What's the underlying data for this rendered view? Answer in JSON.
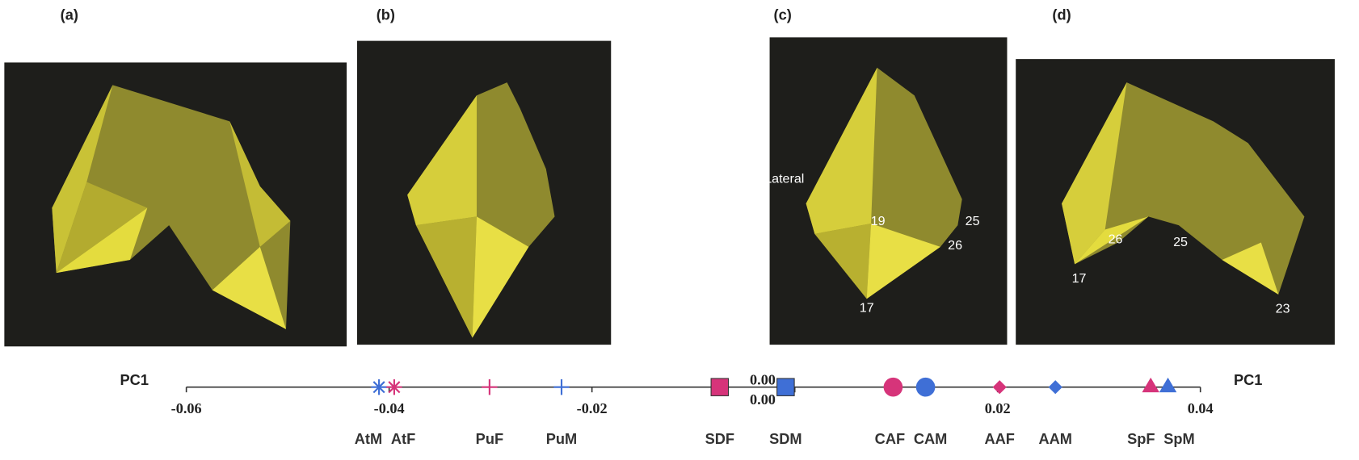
{
  "panels": [
    {
      "label": "(a)",
      "annotations": []
    },
    {
      "label": "(b)",
      "annotations": []
    },
    {
      "label": "(c)",
      "annotations": [
        "Lateral",
        "19",
        "25",
        "26",
        "17"
      ]
    },
    {
      "label": "(d)",
      "annotations": [
        "26",
        "25",
        "17",
        "23"
      ]
    }
  ],
  "chart_data": {
    "type": "strip",
    "axis_labels": [
      "PC1",
      "PC1"
    ],
    "xlim": [
      -0.06,
      0.04
    ],
    "xticks": [
      -0.06,
      -0.04,
      -0.02,
      {
        "value": 0,
        "label": "0.00"
      },
      {
        "value": 0,
        "label": "0.00"
      },
      0.02,
      0.04
    ],
    "series": [
      {
        "name": "AtM",
        "color": "#3f6fd6",
        "marker": "asterisk",
        "values": [
          -0.041
        ]
      },
      {
        "name": "AtF",
        "color": "#d6347a",
        "marker": "asterisk",
        "values": [
          -0.0395
        ]
      },
      {
        "name": "PuF",
        "color": "#d6347a",
        "marker": "plus",
        "values": [
          -0.0301
        ]
      },
      {
        "name": "PuM",
        "color": "#3f6fd6",
        "marker": "plus",
        "values": [
          -0.023
        ]
      },
      {
        "name": "SDF",
        "color": "#d6347a",
        "marker": "square",
        "values": [
          -0.0074
        ]
      },
      {
        "name": "SDM",
        "color": "#3f6fd6",
        "marker": "square",
        "values": [
          -0.0009
        ]
      },
      {
        "name": "CAF",
        "color": "#d6347a",
        "marker": "circle",
        "values": [
          0.0097
        ]
      },
      {
        "name": "CAM",
        "color": "#3f6fd6",
        "marker": "circle",
        "values": [
          0.0129
        ]
      },
      {
        "name": "AAF",
        "color": "#d6347a",
        "marker": "diamond",
        "values": [
          0.0202
        ]
      },
      {
        "name": "AAM",
        "color": "#3f6fd6",
        "marker": "diamond",
        "values": [
          0.0257
        ]
      },
      {
        "name": "SpF",
        "color": "#d6347a",
        "marker": "triangle",
        "values": [
          0.0351
        ]
      },
      {
        "name": "SpM",
        "color": "#3f6fd6",
        "marker": "triangle",
        "values": [
          0.0368
        ]
      }
    ]
  }
}
